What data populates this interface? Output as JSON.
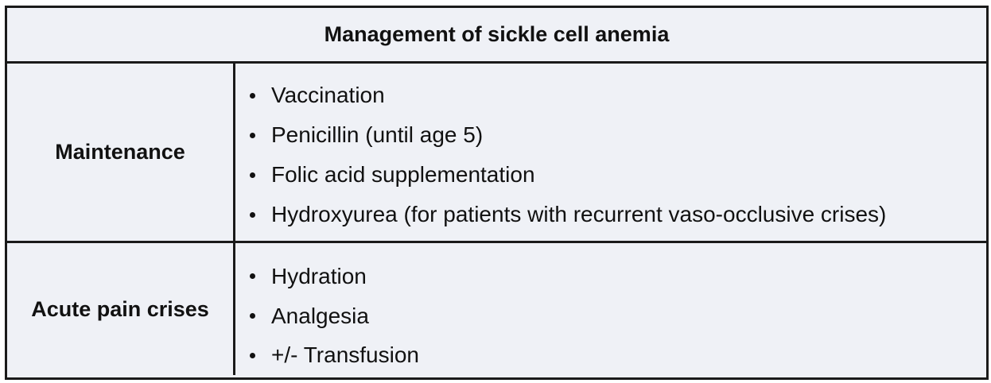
{
  "table": {
    "title": "Management of sickle cell anemia",
    "rows": [
      {
        "label": "Maintenance",
        "items": [
          "Vaccination",
          "Penicillin (until age 5)",
          "Folic acid supplementation",
          "Hydroxyurea (for patients with recurrent vaso-occlusive crises)"
        ]
      },
      {
        "label": "Acute pain crises",
        "items": [
          "Hydration",
          "Analgesia",
          "+/- Transfusion"
        ]
      }
    ]
  },
  "colors": {
    "background": "#eff1f6",
    "border": "#1a1a1a",
    "text": "#111111"
  }
}
